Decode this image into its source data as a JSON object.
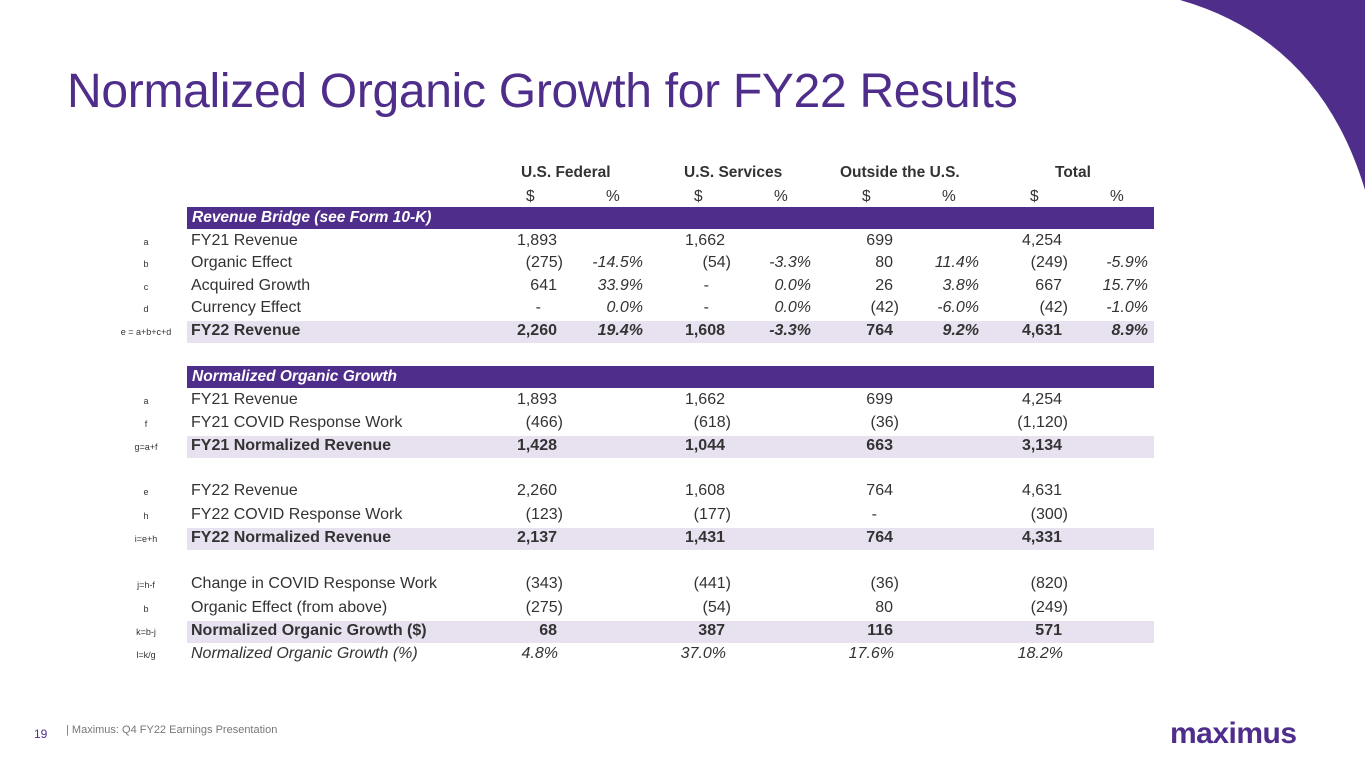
{
  "title": "Normalized Organic Growth for FY22 Results",
  "colors": {
    "brand": "#4f2d8a",
    "band_text": "#ffffff",
    "shade": "#e8e2f0"
  },
  "columns": {
    "groups": [
      "U.S. Federal",
      "U.S. Services",
      "Outside the U.S.",
      "Total"
    ],
    "dollar": "$",
    "pct": "%"
  },
  "sections": {
    "bridge": "Revenue Bridge (see Form 10-K)",
    "normalized": "Normalized Organic Growth"
  },
  "rows": [
    {
      "key": "a",
      "label": "FY21 Revenue",
      "v": [
        "1,893",
        "",
        "1,662",
        "",
        "699",
        "",
        "4,254",
        ""
      ]
    },
    {
      "key": "b",
      "label": "Organic Effect",
      "v": [
        "(275)",
        "-14.5%",
        "(54)",
        "-3.3%",
        "80",
        "11.4%",
        "(249)",
        "-5.9%"
      ]
    },
    {
      "key": "c",
      "label": "Acquired Growth",
      "v": [
        "641",
        "33.9%",
        "-",
        "0.0%",
        "26",
        "3.8%",
        "667",
        "15.7%"
      ]
    },
    {
      "key": "d",
      "label": "Currency Effect",
      "v": [
        "-",
        "0.0%",
        "-",
        "0.0%",
        "(42)",
        "-6.0%",
        "(42)",
        "-1.0%"
      ]
    },
    {
      "key": "e = a+b+c+d",
      "label": "FY22 Revenue",
      "v": [
        "2,260",
        "19.4%",
        "1,608",
        "-3.3%",
        "764",
        "9.2%",
        "4,631",
        "8.9%"
      ]
    },
    {
      "key": "a",
      "label": "FY21 Revenue",
      "v": [
        "1,893",
        "",
        "1,662",
        "",
        "699",
        "",
        "4,254",
        ""
      ]
    },
    {
      "key": "f",
      "label": "FY21 COVID Response Work",
      "v": [
        "(466)",
        "",
        "(618)",
        "",
        "(36)",
        "",
        "(1,120)",
        ""
      ]
    },
    {
      "key": "g=a+f",
      "label": "FY21 Normalized Revenue",
      "v": [
        "1,428",
        "",
        "1,044",
        "",
        "663",
        "",
        "3,134",
        ""
      ]
    },
    {
      "key": "e",
      "label": "FY22 Revenue",
      "v": [
        "2,260",
        "",
        "1,608",
        "",
        "764",
        "",
        "4,631",
        ""
      ]
    },
    {
      "key": "h",
      "label": "FY22 COVID Response Work",
      "v": [
        "(123)",
        "",
        "(177)",
        "",
        "-",
        "",
        "(300)",
        ""
      ]
    },
    {
      "key": "i=e+h",
      "label": "FY22 Normalized Revenue",
      "v": [
        "2,137",
        "",
        "1,431",
        "",
        "764",
        "",
        "4,331",
        ""
      ]
    },
    {
      "key": "j=h-f",
      "label": "Change in COVID Response Work",
      "v": [
        "(343)",
        "",
        "(441)",
        "",
        "(36)",
        "",
        "(820)",
        ""
      ]
    },
    {
      "key": "b",
      "label": "Organic Effect (from above)",
      "v": [
        "(275)",
        "",
        "(54)",
        "",
        "80",
        "",
        "(249)",
        ""
      ]
    },
    {
      "key": "k=b-j",
      "label": "Normalized Organic Growth ($)",
      "v": [
        "68",
        "",
        "387",
        "",
        "116",
        "",
        "571",
        ""
      ]
    },
    {
      "key": "l=k/g",
      "label": "Normalized Organic Growth (%)",
      "v": [
        "4.8%",
        "",
        "37.0%",
        "",
        "17.6%",
        "",
        "18.2%",
        ""
      ]
    }
  ],
  "footer": {
    "page": "19",
    "text": "| Maximus: Q4 FY22 Earnings Presentation",
    "logo": "maximus"
  }
}
